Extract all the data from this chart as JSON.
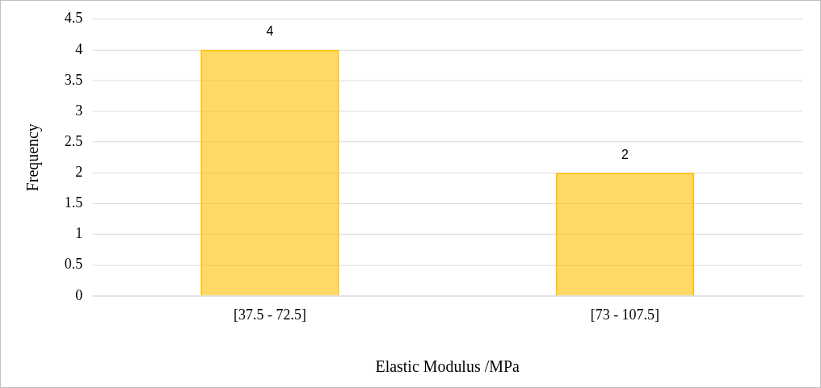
{
  "chart_data": {
    "type": "bar",
    "xlabel": "Elastic Modulus /MPa",
    "ylabel": "Frequency",
    "categories": [
      "[37.5 - 72.5]",
      "[73 - 107.5]"
    ],
    "values": [
      4,
      2
    ],
    "color": "#ffc000",
    "ylim": [
      0,
      4.5
    ],
    "yticks": [
      0,
      0.5,
      1,
      1.5,
      2,
      2.5,
      3,
      3.5,
      4,
      4.5
    ],
    "grid": "y",
    "legend": false,
    "data_labels": true
  }
}
